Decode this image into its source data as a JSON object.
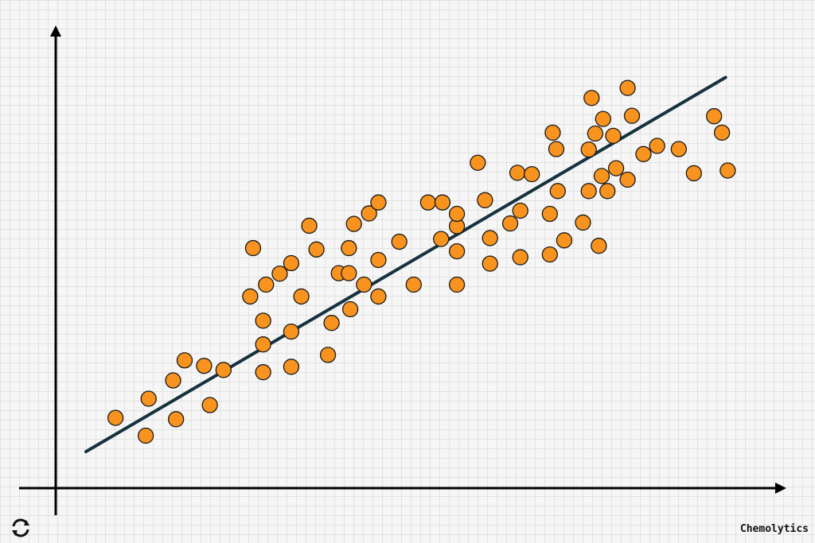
{
  "brand": {
    "name": "Chemolytics",
    "icon": "refresh-cycle-icon"
  },
  "colors": {
    "point_fill": "#F7931E",
    "point_stroke": "#1a1a1a",
    "trend_line": "#16323F",
    "axis": "#000000"
  },
  "chart_data": {
    "type": "scatter",
    "title": "",
    "xlabel": "",
    "ylabel": "",
    "xlim": [
      0,
      100
    ],
    "ylim": [
      0,
      100
    ],
    "grid": true,
    "legend": "none",
    "points": [
      [
        8.3,
        15.4
      ],
      [
        12.5,
        11.5
      ],
      [
        12.9,
        19.6
      ],
      [
        16.3,
        23.6
      ],
      [
        16.7,
        15.1
      ],
      [
        17.9,
        28.0
      ],
      [
        20.6,
        26.8
      ],
      [
        21.4,
        18.2
      ],
      [
        23.3,
        25.9
      ],
      [
        27.0,
        42.0
      ],
      [
        27.4,
        52.6
      ],
      [
        28.8,
        36.7
      ],
      [
        28.8,
        25.4
      ],
      [
        28.8,
        31.5
      ],
      [
        29.2,
        44.6
      ],
      [
        31.1,
        47.0
      ],
      [
        32.7,
        34.3
      ],
      [
        32.7,
        26.6
      ],
      [
        32.7,
        49.3
      ],
      [
        34.1,
        42.0
      ],
      [
        35.2,
        57.5
      ],
      [
        36.2,
        52.3
      ],
      [
        37.8,
        29.2
      ],
      [
        38.3,
        36.2
      ],
      [
        39.3,
        47.1
      ],
      [
        40.7,
        47.1
      ],
      [
        40.7,
        52.6
      ],
      [
        40.9,
        39.2
      ],
      [
        41.4,
        57.9
      ],
      [
        42.8,
        44.6
      ],
      [
        43.5,
        60.2
      ],
      [
        44.8,
        42.0
      ],
      [
        44.8,
        50.0
      ],
      [
        44.8,
        62.6
      ],
      [
        47.7,
        54.0
      ],
      [
        49.7,
        44.6
      ],
      [
        51.7,
        62.6
      ],
      [
        53.5,
        54.6
      ],
      [
        53.7,
        62.6
      ],
      [
        55.7,
        44.6
      ],
      [
        55.7,
        51.9
      ],
      [
        55.7,
        57.4
      ],
      [
        55.7,
        60.1
      ],
      [
        58.6,
        71.3
      ],
      [
        59.6,
        63.1
      ],
      [
        60.3,
        49.2
      ],
      [
        60.3,
        54.8
      ],
      [
        63.1,
        58.0
      ],
      [
        64.1,
        69.1
      ],
      [
        64.5,
        50.6
      ],
      [
        64.5,
        60.8
      ],
      [
        66.1,
        68.8
      ],
      [
        68.6,
        60.1
      ],
      [
        68.6,
        51.2
      ],
      [
        69.0,
        77.9
      ],
      [
        69.5,
        74.3
      ],
      [
        69.7,
        65.1
      ],
      [
        70.6,
        54.3
      ],
      [
        73.2,
        58.2
      ],
      [
        74.0,
        65.1
      ],
      [
        74.0,
        74.2
      ],
      [
        74.4,
        85.5
      ],
      [
        74.9,
        77.7
      ],
      [
        75.4,
        53.1
      ],
      [
        75.8,
        68.4
      ],
      [
        76.0,
        80.9
      ],
      [
        76.6,
        65.1
      ],
      [
        77.4,
        77.2
      ],
      [
        77.8,
        70.1
      ],
      [
        79.4,
        67.6
      ],
      [
        79.4,
        87.7
      ],
      [
        80.0,
        81.6
      ],
      [
        81.6,
        73.2
      ],
      [
        83.5,
        75.0
      ],
      [
        86.5,
        74.3
      ],
      [
        88.6,
        69.0
      ],
      [
        91.4,
        81.5
      ],
      [
        92.5,
        77.9
      ],
      [
        93.3,
        69.6
      ]
    ],
    "trendline": {
      "from": [
        4.2,
        8.0
      ],
      "to": [
        93.0,
        90.0
      ]
    }
  }
}
